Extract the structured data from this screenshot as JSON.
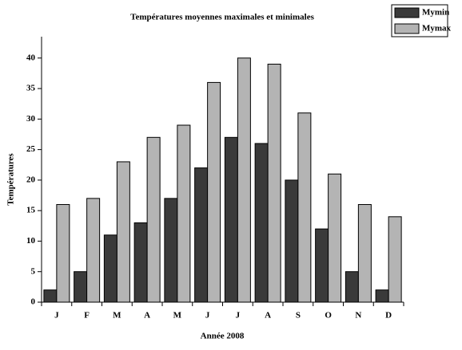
{
  "chart_data": {
    "type": "bar",
    "title": "Températures moyennes maximales et minimales",
    "x_label": "Année 2008",
    "y_label": "Températures",
    "categories": [
      "J",
      "F",
      "M",
      "A",
      "M",
      "J",
      "J",
      "A",
      "S",
      "O",
      "N",
      "D"
    ],
    "series": [
      {
        "name": "Mymin",
        "color": "#3a3a3a",
        "values": [
          2,
          5,
          11,
          13,
          17,
          22,
          27,
          26,
          20,
          12,
          5,
          2
        ]
      },
      {
        "name": "Mymax",
        "color": "#b4b4b4",
        "values": [
          16,
          17,
          23,
          27,
          29,
          36,
          40,
          39,
          31,
          21,
          16,
          14
        ]
      }
    ],
    "ylim": [
      0,
      43.5
    ],
    "yticks": [
      0,
      5,
      10,
      15,
      20,
      25,
      30,
      35,
      40
    ],
    "grid": false,
    "legend": "top-right"
  }
}
